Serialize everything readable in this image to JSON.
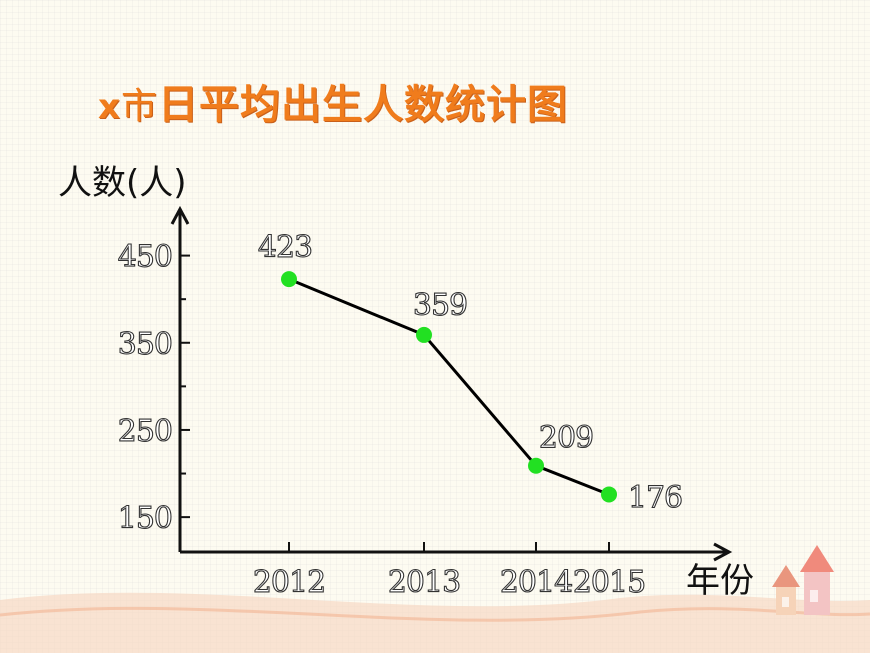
{
  "title_prefix": "x",
  "title_city": "市",
  "title_rest": "日平均出生人数统计图",
  "colors": {
    "title": "#f07c1c",
    "line": "#000000",
    "point": "#22e022",
    "axis": "#111111"
  },
  "chart_data": {
    "type": "line",
    "categories": [
      "2012",
      "2013",
      "2014",
      "2015"
    ],
    "series": [
      {
        "values": [
          423,
          359,
          209,
          176
        ]
      }
    ],
    "data_labels": [
      "423",
      "359",
      "209",
      "176"
    ],
    "yticks": [
      150,
      250,
      350,
      450
    ],
    "ytick_labels": [
      "150",
      "250",
      "350",
      "450"
    ],
    "ylabel": "人数(人)",
    "xlabel": "年份",
    "ylim": [
      110,
      500
    ],
    "grid": false
  }
}
